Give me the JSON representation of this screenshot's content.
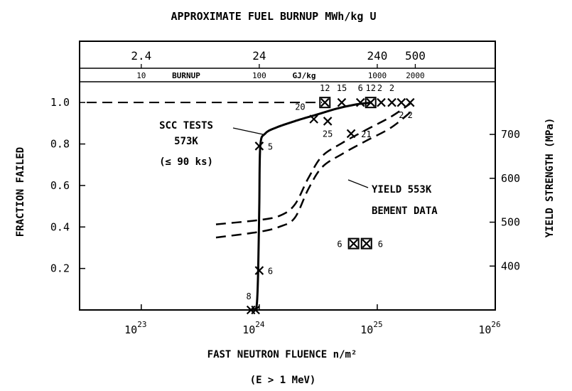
{
  "chart_data": {
    "type": "scatter",
    "top_axis_title": "APPROXIMATE FUEL BURNUP MWh/kg U",
    "top_axis_ticks": [
      "2.4",
      "24",
      "240",
      "500"
    ],
    "burnup_band": {
      "label": "BURNUP",
      "unit": "GJ/kg",
      "ticks": [
        "10",
        "100",
        "1000",
        "2000"
      ]
    },
    "xlabel": "FAST NEUTRON FLUENCE n/m²",
    "xlabel_sub": "(E > 1 MeV)",
    "x_scale": "log",
    "xlim": [
      3e+22,
      1e+26
    ],
    "x_ticks": [
      {
        "value": 1e+23,
        "base": "10",
        "exp": "23"
      },
      {
        "value": 1e+24,
        "base": "10",
        "exp": "24"
      },
      {
        "value": 1e+25,
        "base": "10",
        "exp": "25"
      },
      {
        "value": 1e+26,
        "base": "10",
        "exp": "26"
      }
    ],
    "ylabel": "FRACTION FAILED",
    "ylim": [
      0,
      1.1
    ],
    "y_ticks": [
      "0.2",
      "0.4",
      "0.6",
      "0.8",
      "1.0"
    ],
    "y2label": "YIELD STRENGTH (MPa)",
    "y2lim": [
      300,
      820
    ],
    "y2_ticks": [
      "400",
      "500",
      "600",
      "700"
    ],
    "points": [
      {
        "x": 8.5e+23,
        "y": 0.0,
        "label": "8"
      },
      {
        "x": 9.3e+23,
        "y": 0.0,
        "label": ""
      },
      {
        "x": 1e+24,
        "y": 0.19,
        "label": "6"
      },
      {
        "x": 1e+24,
        "y": 0.79,
        "label": "5"
      },
      {
        "x": 2.9e+24,
        "y": 0.92,
        "label": "20"
      },
      {
        "x": 3.8e+24,
        "y": 0.91,
        "label": "25"
      },
      {
        "x": 6e+24,
        "y": 0.85,
        "label": "21"
      },
      {
        "x": 3.6e+24,
        "y": 1.0,
        "label": "12",
        "boxed": true
      },
      {
        "x": 5e+24,
        "y": 1.0,
        "label": "15"
      },
      {
        "x": 7.2e+24,
        "y": 1.0,
        "label": "6"
      },
      {
        "x": 8.8e+24,
        "y": 1.0,
        "label": "12",
        "boxed": true
      },
      {
        "x": 1.08e+25,
        "y": 1.0,
        "label": "2"
      },
      {
        "x": 1.33e+25,
        "y": 1.0,
        "label": "2"
      },
      {
        "x": 1.6e+25,
        "y": 1.0,
        "label": "2"
      },
      {
        "x": 1.9e+25,
        "y": 1.0,
        "label": "2"
      },
      {
        "x": 6.3e+24,
        "y": 0.32,
        "label": "6",
        "boxed": true
      },
      {
        "x": 8.1e+24,
        "y": 0.32,
        "label": "6",
        "boxed": true
      }
    ],
    "scc_curve": {
      "points": [
        [
          8.8e+23,
          0.0
        ],
        [
          9.5e+23,
          0.02
        ],
        [
          9.8e+23,
          0.2
        ],
        [
          1e+24,
          0.5
        ],
        [
          1.02e+24,
          0.79
        ],
        [
          1.12e+24,
          0.85
        ],
        [
          1.4e+24,
          0.88
        ],
        [
          2e+24,
          0.91
        ],
        [
          3e+24,
          0.94
        ],
        [
          4.5e+24,
          0.97
        ],
        [
          6.5e+24,
          0.99
        ],
        [
          9e+24,
          1.0
        ]
      ],
      "label_lines": [
        "SCC TESTS",
        "573K",
        "(≤ 90 ks)"
      ]
    },
    "dashed_line_y": 1.0,
    "yield_data": {
      "label_lines": [
        "YIELD 553K",
        "BEMENT DATA"
      ],
      "upper": [
        [
          4.3e+23,
          495
        ],
        [
          1e+24,
          505
        ],
        [
          1.5e+24,
          515
        ],
        [
          2e+24,
          540
        ],
        [
          2.6e+24,
          600
        ],
        [
          3.4e+24,
          650
        ],
        [
          5e+24,
          680
        ],
        [
          8e+24,
          710
        ],
        [
          1.3e+25,
          740
        ],
        [
          1.9e+25,
          770
        ]
      ],
      "lower": [
        [
          4.3e+23,
          465
        ],
        [
          1e+24,
          478
        ],
        [
          1.5e+24,
          490
        ],
        [
          2e+24,
          510
        ],
        [
          2.6e+24,
          575
        ],
        [
          3.4e+24,
          625
        ],
        [
          5e+24,
          655
        ],
        [
          8e+24,
          685
        ],
        [
          1.3e+25,
          715
        ],
        [
          1.9e+25,
          750
        ]
      ]
    }
  }
}
